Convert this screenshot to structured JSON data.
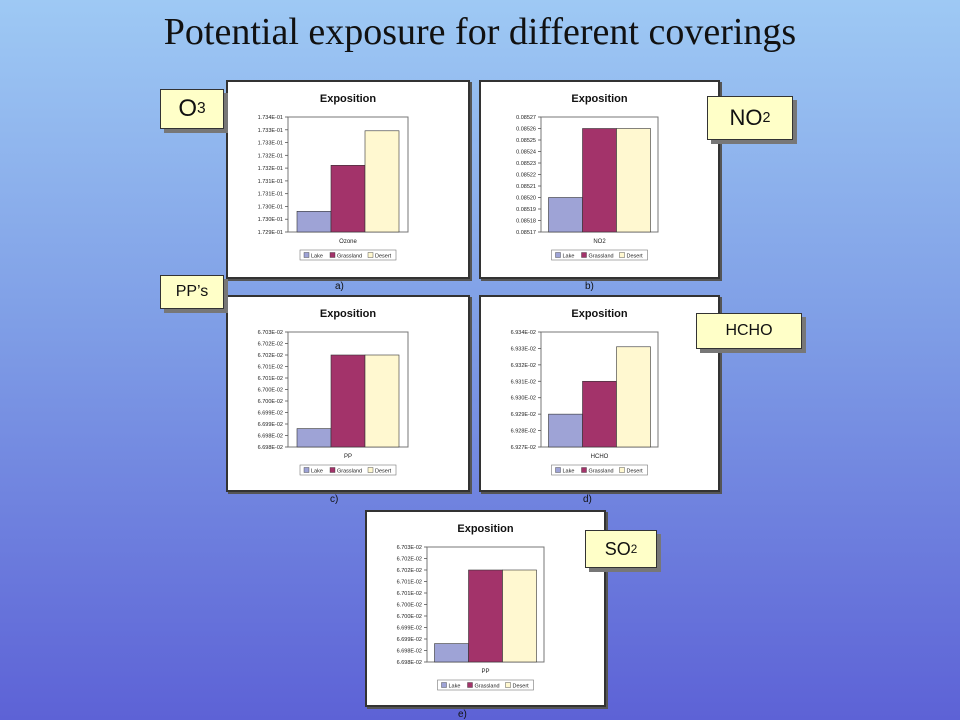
{
  "slide": {
    "title": "Potential exposure for different coverings"
  },
  "legend_colors": {
    "Lake": "#9ea3d6",
    "Grassland": "#a3336a",
    "Desert": "#fff8d0"
  },
  "tags": [
    {
      "id": "o3",
      "main": "O",
      "sub": "3"
    },
    {
      "id": "no2",
      "main": "NO",
      "sub": "2"
    },
    {
      "id": "pps",
      "main": "PP’s",
      "sub": ""
    },
    {
      "id": "hcho",
      "main": "HCHO",
      "sub": ""
    },
    {
      "id": "so2",
      "main": "SO",
      "sub": "2"
    }
  ],
  "chart_data": [
    {
      "type": "bar",
      "title": "Exposition",
      "caption": "a)",
      "categories": [
        "Ozone"
      ],
      "series": [
        {
          "name": "Lake",
          "values": [
            0.17299
          ]
        },
        {
          "name": "Grassland",
          "values": [
            0.17319
          ]
        },
        {
          "name": "Desert",
          "values": [
            0.17334
          ]
        }
      ],
      "yticks": [
        "1.734E-01",
        "1.733E-01",
        "1.733E-01",
        "1.732E-01",
        "1.732E-01",
        "1.731E-01",
        "1.731E-01",
        "1.730E-01",
        "1.730E-01",
        "1.729E-01"
      ],
      "ylim": [
        0.1729,
        0.1734
      ],
      "legend": "bottom"
    },
    {
      "type": "bar",
      "title": "Exposition",
      "caption": "b)",
      "categories": [
        "NO2"
      ],
      "series": [
        {
          "name": "Lake",
          "values": [
            0.0852
          ]
        },
        {
          "name": "Grassland",
          "values": [
            0.08526
          ]
        },
        {
          "name": "Desert",
          "values": [
            0.08526
          ]
        }
      ],
      "yticks": [
        "0.08527",
        "0.08526",
        "0.08525",
        "0.08524",
        "0.08523",
        "0.08522",
        "0.08521",
        "0.08520",
        "0.08519",
        "0.08518",
        "0.08517"
      ],
      "ylim": [
        0.08517,
        0.08527
      ],
      "legend": "bottom"
    },
    {
      "type": "bar",
      "title": "Exposition",
      "caption": "c)",
      "categories": [
        "PP"
      ],
      "series": [
        {
          "name": "Lake",
          "values": [
            0.066988
          ]
        },
        {
          "name": "Grassland",
          "values": [
            0.06702
          ]
        },
        {
          "name": "Desert",
          "values": [
            0.06702
          ]
        }
      ],
      "yticks": [
        "6.703E-02",
        "6.702E-02",
        "6.702E-02",
        "6.701E-02",
        "6.701E-02",
        "6.700E-02",
        "6.700E-02",
        "6.699E-02",
        "6.699E-02",
        "6.698E-02",
        "6.698E-02"
      ],
      "ylim": [
        0.06698,
        0.06703
      ],
      "legend": "bottom"
    },
    {
      "type": "bar",
      "title": "Exposition",
      "caption": "d)",
      "categories": [
        "HCHO"
      ],
      "series": [
        {
          "name": "Lake",
          "values": [
            0.06929
          ]
        },
        {
          "name": "Grassland",
          "values": [
            0.06931
          ]
        },
        {
          "name": "Desert",
          "values": [
            0.069331
          ]
        }
      ],
      "yticks": [
        "6.934E-02",
        "6.933E-02",
        "6.932E-02",
        "6.931E-02",
        "6.930E-02",
        "6.929E-02",
        "6.928E-02",
        "6.927E-02"
      ],
      "ylim": [
        0.06927,
        0.06934
      ],
      "legend": "bottom"
    },
    {
      "type": "bar",
      "title": "Exposition",
      "caption": "e)",
      "categories": [
        "PP"
      ],
      "series": [
        {
          "name": "Lake",
          "values": [
            0.066988
          ]
        },
        {
          "name": "Grassland",
          "values": [
            0.06702
          ]
        },
        {
          "name": "Desert",
          "values": [
            0.06702
          ]
        }
      ],
      "yticks": [
        "6.703E-02",
        "6.702E-02",
        "6.702E-02",
        "6.701E-02",
        "6.701E-02",
        "6.700E-02",
        "6.700E-02",
        "6.699E-02",
        "6.699E-02",
        "6.698E-02",
        "6.698E-02"
      ],
      "ylim": [
        0.06698,
        0.06703
      ],
      "legend": "bottom"
    }
  ]
}
